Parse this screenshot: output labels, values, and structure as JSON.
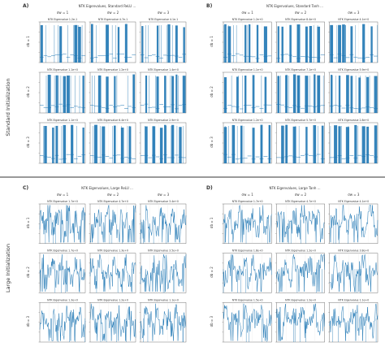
{
  "side_labels": [
    "Standard Initialization",
    "Large Initialization"
  ],
  "panels": [
    {
      "letter": "A)",
      "title": "NTK Eigenvalues, Standard ReLU ...",
      "col_headers": [
        "σw = 1",
        "σw = 2",
        "σw = 3"
      ],
      "row_headers": [
        "σb = 1",
        "σb = 2",
        "σb = 3"
      ],
      "cells": [
        [
          "NTK Eigenvalue 1.2e-1",
          "NTK Eigenvalue 4.7e-1",
          "NTK Eigenvalue 4.1e-1"
        ],
        [
          "NTK Eigenvalue 1.1e+0",
          "NTK Eigenvalue 1.2e+0",
          "NTK Eigenvalue 1.4e+0"
        ],
        [
          "NTK Eigenvalue 1.1e+0",
          "NTK Eigenvalue 6.4e+0",
          "NTK Eigenvalue 2.9e+0"
        ]
      ],
      "ylabel": "Eigenvalue"
    },
    {
      "letter": "B)",
      "title": "NTK Eigenvalues, Standard Tanh ...",
      "col_headers": [
        "σw = 1",
        "σw = 2",
        "σw = 3"
      ],
      "row_headers": [
        "σb = 1",
        "σb = 2",
        "σb = 3"
      ],
      "cells": [
        [
          "NTK Eigenvalue 1.2e+0",
          "NTK Eigenvalue 8.4e+0",
          "NTK Eigenvalue 4.1e+0"
        ],
        [
          "NTK Eigenvalue 1.1e+0",
          "NTK Eigenvalue 7.1e+0",
          "NTK Eigenvalue 5.9e+0"
        ],
        [
          "NTK Eigenvalue 1.2e+0",
          "NTK Eigenvalue 5.7e+0",
          "NTK Eigenvalue 2.8e+0"
        ]
      ],
      "ylabel": "Eigenvalue"
    },
    {
      "letter": "C)",
      "title": "NTK Eigenvalues, Large ReLU ...",
      "col_headers": [
        "σw = 1",
        "σw = 2",
        "σw = 3"
      ],
      "row_headers": [
        "σb = 1",
        "σb = 2",
        "σb = 3"
      ],
      "cells": [
        [
          "NTK Eigenvalue 1.7e+0",
          "NTK Eigenvalue 4.7e+0",
          "NTK Eigenvalue 3.4e+0"
        ],
        [
          "NTK Eigenvalue 1.7e+0",
          "NTK Eigenvalue 1.3e+0",
          "NTK Eigenvalue 3.5e+0"
        ],
        [
          "NTK Eigenvalue 1.3e+0",
          "NTK Eigenvalue 1.2e+0",
          "NTK Eigenvalue 1.1e+0"
        ]
      ],
      "ylabel": "Eigenvalue"
    },
    {
      "letter": "D)",
      "title": "NTK Eigenvalues, Large Tanh ...",
      "col_headers": [
        "σw = 1",
        "σw = 2",
        "σw = 3"
      ],
      "row_headers": [
        "σb = 1",
        "σb = 2",
        "σb = 3"
      ],
      "cells": [
        [
          "NTK Eigenvalue 1.7e+0",
          "NTK Eigenvalue 4.7e+0",
          "NTK Eigenvalue 4.1e+0"
        ],
        [
          "NTK Eigenvalue 1.8e+0",
          "NTK Eigenvalue 1.2e+0",
          "NTK Eigenvalue 3.8e+0"
        ],
        [
          "NTK Eigenvalue 1.5e+0",
          "NTK Eigenvalue 1.2e+0",
          "NTK Eigenvalue 1.1e+0"
        ]
      ],
      "ylabel": "Eigenvalue"
    }
  ],
  "colors": {
    "series": "#1f77b4",
    "axis": "#555555",
    "grid": "#e6e6e6",
    "divider": "#333333"
  },
  "chart_data": [
    {
      "type": "bar",
      "panel": "A",
      "style": "sparse-spikes",
      "series": [
        {
          "values": [
            0.9,
            0.1,
            0.95,
            0.05,
            0.2,
            0.9,
            0.15,
            0.9,
            0.1,
            0.85,
            0.9,
            0.1
          ]
        }
      ]
    },
    {
      "type": "bar",
      "panel": "B",
      "style": "sparse-spikes",
      "series": [
        {
          "values": [
            0.95,
            0.9,
            0.1,
            0.9,
            0.05,
            0.85,
            0.9,
            0.1,
            0.9,
            0.1,
            0.9,
            0.2
          ]
        }
      ]
    },
    {
      "type": "line",
      "panel": "C",
      "style": "dense-noise",
      "series": [
        {
          "values": [
            0.6,
            0.4,
            0.75,
            0.3,
            0.55,
            0.65,
            0.35,
            0.8,
            0.45,
            0.6,
            0.3,
            0.7
          ]
        }
      ]
    },
    {
      "type": "line",
      "panel": "D",
      "style": "dense-noise",
      "series": [
        {
          "values": [
            0.55,
            0.7,
            0.35,
            0.6,
            0.8,
            0.4,
            0.5,
            0.65,
            0.3,
            0.75,
            0.45,
            0.6
          ]
        }
      ]
    }
  ]
}
